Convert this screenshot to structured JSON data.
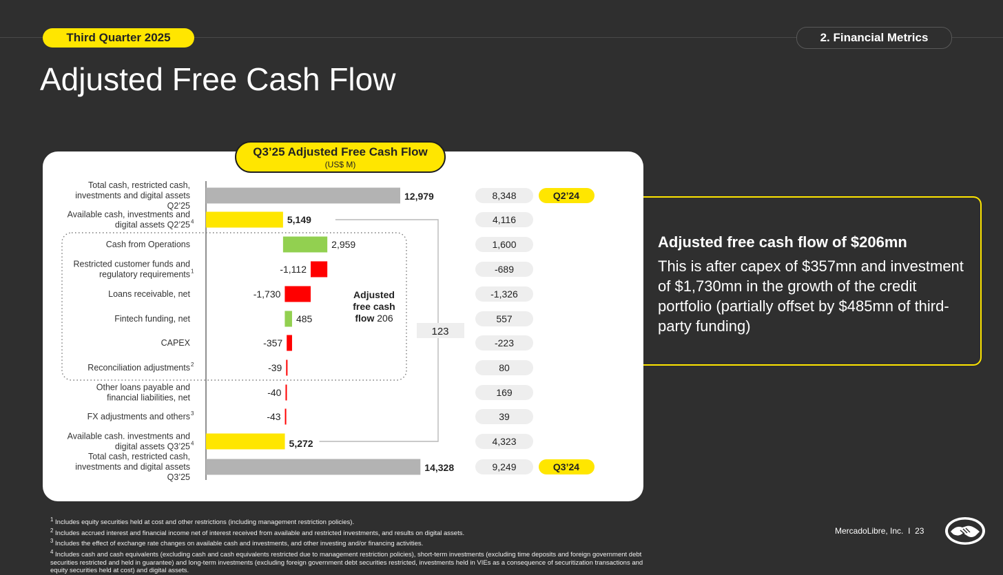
{
  "header": {
    "quarter_label": "Third Quarter 2025",
    "section_label": "2. Financial Metrics",
    "page_title": "Adjusted Free Cash Flow"
  },
  "chart_data": {
    "type": "bar",
    "title": "Q3’25 Adjusted Free Cash Flow",
    "subtitle": "(US$ M)",
    "rows": [
      {
        "label": [
          "Total cash, restricted cash,",
          "investments and digital assets",
          "Q2’25"
        ],
        "value": 12979,
        "display": "12,979",
        "kind": "total",
        "prior": "8,348"
      },
      {
        "label": [
          "Available cash, investments and",
          "digital assets Q2’25"
        ],
        "sup": "4",
        "value": 5149,
        "display": "5,149",
        "kind": "available",
        "prior": "4,116"
      },
      {
        "label": [
          "Cash from Operations"
        ],
        "value": 2959,
        "display": "2,959",
        "kind": "positive",
        "prior": "1,600"
      },
      {
        "label": [
          "Restricted customer funds and",
          "regulatory requirements"
        ],
        "sup": "1",
        "value": -1112,
        "display": "-1,112",
        "kind": "negative",
        "prior": "-689"
      },
      {
        "label": [
          "Loans receivable, net"
        ],
        "value": -1730,
        "display": "-1,730",
        "kind": "negative",
        "prior": "-1,326"
      },
      {
        "label": [
          "Fintech funding, net"
        ],
        "value": 485,
        "display": "485",
        "kind": "positive",
        "prior": "557"
      },
      {
        "label": [
          "CAPEX"
        ],
        "value": -357,
        "display": "-357",
        "kind": "negative",
        "prior": "-223"
      },
      {
        "label": [
          "Reconciliation adjustments"
        ],
        "sup": "2",
        "value": -39,
        "display": "-39",
        "kind": "negative",
        "prior": "80"
      },
      {
        "label": [
          "Other loans payable and",
          "financial liabilities, net"
        ],
        "value": -40,
        "display": "-40",
        "kind": "negative",
        "prior": "169"
      },
      {
        "label": [
          "FX adjustments and others"
        ],
        "sup": "3",
        "value": -43,
        "display": "-43",
        "kind": "negative",
        "prior": "39"
      },
      {
        "label": [
          "Available cash. investments and",
          "digital assets Q3’25"
        ],
        "sup": "4",
        "value": 5272,
        "display": "5,272",
        "kind": "available",
        "prior": "4,323"
      },
      {
        "label": [
          "Total cash, restricted cash,",
          "investments and digital assets",
          "Q3’25"
        ],
        "value": 14328,
        "display": "14,328",
        "kind": "total",
        "prior": "9,249"
      }
    ],
    "prior_period_tags": [
      "Q2’24",
      "Q3’24"
    ],
    "adjusted_fcf_label": [
      "Adjusted",
      "free cash",
      "flow 206"
    ],
    "net_change_label": "123",
    "colors": {
      "total": "#b3b3b3",
      "available": "#ffe600",
      "positive": "#92d050",
      "negative": "#ff0000",
      "tag": "#ffe600",
      "prior_pill": "#eeeeee"
    }
  },
  "sidebar": {
    "headline": "Adjusted free cash flow of $206mn",
    "body": "This is after capex of $357mn and investment of $1,730mn in the growth of the credit portfolio (partially offset by $485mn of third-party funding)"
  },
  "footnotes": [
    {
      "num": "1",
      "text": "Includes equity securities held at cost and other restrictions (including management restriction policies)."
    },
    {
      "num": "2",
      "text": "Includes accrued interest and financial income net of interest received from available and restricted investments, and results on digital assets."
    },
    {
      "num": "3",
      "text": "Includes the effect of exchange rate changes on available cash and investments, and other investing and/or financing activities."
    },
    {
      "num": "4",
      "text": "Includes cash and cash equivalents (excluding cash and cash equivalents restricted due to management restriction policies), short-term investments (excluding time deposits and foreign government debt securities restricted and held in guarantee) and long-term investments (excluding foreign government debt securities restricted, investments held in VIEs as a consequence of securitization transactions and equity securities held at cost) and digital assets."
    }
  ],
  "footer": {
    "company": "MercadoLibre, Inc.",
    "separator": "I",
    "page_number": "23"
  },
  "logo_icon": "handshake-icon"
}
